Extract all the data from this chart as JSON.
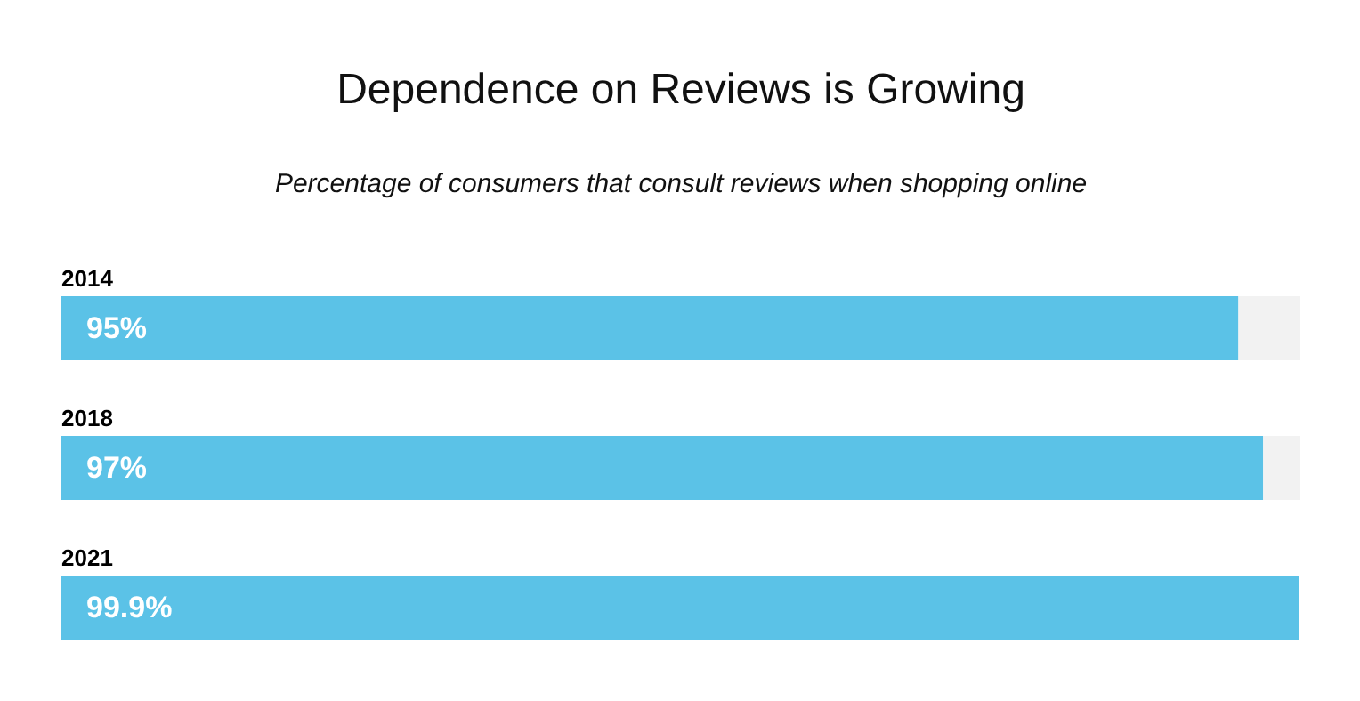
{
  "chart_data": {
    "type": "bar",
    "orientation": "horizontal",
    "stacked": true,
    "title": "Dependence on Reviews is Growing",
    "subtitle": "Percentage of consumers that consult reviews when shopping online",
    "categories": [
      "2014",
      "2018",
      "2021"
    ],
    "xlim": [
      0,
      100
    ],
    "tick_labels": "y",
    "grid": false,
    "series": [
      {
        "color": "#5bc2e7",
        "values": [
          95,
          97,
          99.9
        ],
        "value_labels": [
          "95%",
          "97%",
          "99.9%"
        ]
      },
      {
        "color": "#f2f2f2",
        "values": [
          5,
          3,
          null
        ],
        "value_labels": [
          null,
          null,
          null
        ]
      }
    ]
  }
}
